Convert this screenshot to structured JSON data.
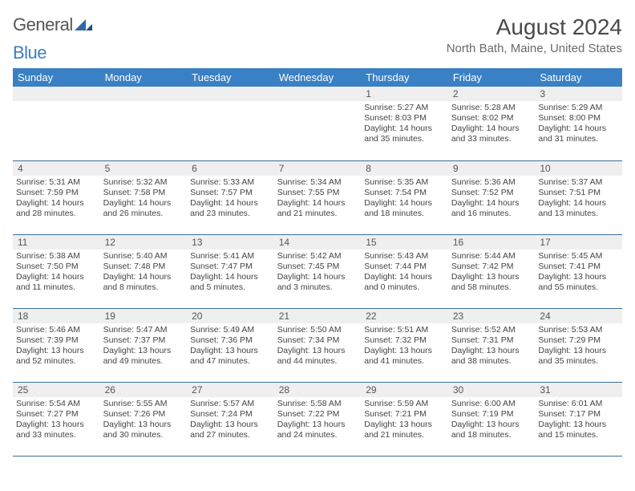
{
  "logo": {
    "word1": "General",
    "word2": "Blue",
    "word1_color": "#555555",
    "word2_color": "#3a80c4",
    "mark_color": "#2f6aa8"
  },
  "title": {
    "month_year": "August 2024",
    "location": "North Bath, Maine, United States",
    "title_color": "#4a4a4a",
    "location_color": "#6a6a6a",
    "title_fontsize": 28,
    "location_fontsize": 15
  },
  "theme": {
    "header_bg": "#3a80c4",
    "header_text": "#ffffff",
    "daynum_bg": "#efefef",
    "daynum_text": "#555555",
    "row_divider": "#3a6fa0",
    "body_text": "#444444",
    "page_bg": "#ffffff"
  },
  "weekdays": [
    "Sunday",
    "Monday",
    "Tuesday",
    "Wednesday",
    "Thursday",
    "Friday",
    "Saturday"
  ],
  "weeks": [
    [
      {
        "blank": true
      },
      {
        "blank": true
      },
      {
        "blank": true
      },
      {
        "blank": true
      },
      {
        "day": "1",
        "sunrise": "Sunrise: 5:27 AM",
        "sunset": "Sunset: 8:03 PM",
        "daylight": "Daylight: 14 hours and 35 minutes."
      },
      {
        "day": "2",
        "sunrise": "Sunrise: 5:28 AM",
        "sunset": "Sunset: 8:02 PM",
        "daylight": "Daylight: 14 hours and 33 minutes."
      },
      {
        "day": "3",
        "sunrise": "Sunrise: 5:29 AM",
        "sunset": "Sunset: 8:00 PM",
        "daylight": "Daylight: 14 hours and 31 minutes."
      }
    ],
    [
      {
        "day": "4",
        "sunrise": "Sunrise: 5:31 AM",
        "sunset": "Sunset: 7:59 PM",
        "daylight": "Daylight: 14 hours and 28 minutes."
      },
      {
        "day": "5",
        "sunrise": "Sunrise: 5:32 AM",
        "sunset": "Sunset: 7:58 PM",
        "daylight": "Daylight: 14 hours and 26 minutes."
      },
      {
        "day": "6",
        "sunrise": "Sunrise: 5:33 AM",
        "sunset": "Sunset: 7:57 PM",
        "daylight": "Daylight: 14 hours and 23 minutes."
      },
      {
        "day": "7",
        "sunrise": "Sunrise: 5:34 AM",
        "sunset": "Sunset: 7:55 PM",
        "daylight": "Daylight: 14 hours and 21 minutes."
      },
      {
        "day": "8",
        "sunrise": "Sunrise: 5:35 AM",
        "sunset": "Sunset: 7:54 PM",
        "daylight": "Daylight: 14 hours and 18 minutes."
      },
      {
        "day": "9",
        "sunrise": "Sunrise: 5:36 AM",
        "sunset": "Sunset: 7:52 PM",
        "daylight": "Daylight: 14 hours and 16 minutes."
      },
      {
        "day": "10",
        "sunrise": "Sunrise: 5:37 AM",
        "sunset": "Sunset: 7:51 PM",
        "daylight": "Daylight: 14 hours and 13 minutes."
      }
    ],
    [
      {
        "day": "11",
        "sunrise": "Sunrise: 5:38 AM",
        "sunset": "Sunset: 7:50 PM",
        "daylight": "Daylight: 14 hours and 11 minutes."
      },
      {
        "day": "12",
        "sunrise": "Sunrise: 5:40 AM",
        "sunset": "Sunset: 7:48 PM",
        "daylight": "Daylight: 14 hours and 8 minutes."
      },
      {
        "day": "13",
        "sunrise": "Sunrise: 5:41 AM",
        "sunset": "Sunset: 7:47 PM",
        "daylight": "Daylight: 14 hours and 5 minutes."
      },
      {
        "day": "14",
        "sunrise": "Sunrise: 5:42 AM",
        "sunset": "Sunset: 7:45 PM",
        "daylight": "Daylight: 14 hours and 3 minutes."
      },
      {
        "day": "15",
        "sunrise": "Sunrise: 5:43 AM",
        "sunset": "Sunset: 7:44 PM",
        "daylight": "Daylight: 14 hours and 0 minutes."
      },
      {
        "day": "16",
        "sunrise": "Sunrise: 5:44 AM",
        "sunset": "Sunset: 7:42 PM",
        "daylight": "Daylight: 13 hours and 58 minutes."
      },
      {
        "day": "17",
        "sunrise": "Sunrise: 5:45 AM",
        "sunset": "Sunset: 7:41 PM",
        "daylight": "Daylight: 13 hours and 55 minutes."
      }
    ],
    [
      {
        "day": "18",
        "sunrise": "Sunrise: 5:46 AM",
        "sunset": "Sunset: 7:39 PM",
        "daylight": "Daylight: 13 hours and 52 minutes."
      },
      {
        "day": "19",
        "sunrise": "Sunrise: 5:47 AM",
        "sunset": "Sunset: 7:37 PM",
        "daylight": "Daylight: 13 hours and 49 minutes."
      },
      {
        "day": "20",
        "sunrise": "Sunrise: 5:49 AM",
        "sunset": "Sunset: 7:36 PM",
        "daylight": "Daylight: 13 hours and 47 minutes."
      },
      {
        "day": "21",
        "sunrise": "Sunrise: 5:50 AM",
        "sunset": "Sunset: 7:34 PM",
        "daylight": "Daylight: 13 hours and 44 minutes."
      },
      {
        "day": "22",
        "sunrise": "Sunrise: 5:51 AM",
        "sunset": "Sunset: 7:32 PM",
        "daylight": "Daylight: 13 hours and 41 minutes."
      },
      {
        "day": "23",
        "sunrise": "Sunrise: 5:52 AM",
        "sunset": "Sunset: 7:31 PM",
        "daylight": "Daylight: 13 hours and 38 minutes."
      },
      {
        "day": "24",
        "sunrise": "Sunrise: 5:53 AM",
        "sunset": "Sunset: 7:29 PM",
        "daylight": "Daylight: 13 hours and 35 minutes."
      }
    ],
    [
      {
        "day": "25",
        "sunrise": "Sunrise: 5:54 AM",
        "sunset": "Sunset: 7:27 PM",
        "daylight": "Daylight: 13 hours and 33 minutes."
      },
      {
        "day": "26",
        "sunrise": "Sunrise: 5:55 AM",
        "sunset": "Sunset: 7:26 PM",
        "daylight": "Daylight: 13 hours and 30 minutes."
      },
      {
        "day": "27",
        "sunrise": "Sunrise: 5:57 AM",
        "sunset": "Sunset: 7:24 PM",
        "daylight": "Daylight: 13 hours and 27 minutes."
      },
      {
        "day": "28",
        "sunrise": "Sunrise: 5:58 AM",
        "sunset": "Sunset: 7:22 PM",
        "daylight": "Daylight: 13 hours and 24 minutes."
      },
      {
        "day": "29",
        "sunrise": "Sunrise: 5:59 AM",
        "sunset": "Sunset: 7:21 PM",
        "daylight": "Daylight: 13 hours and 21 minutes."
      },
      {
        "day": "30",
        "sunrise": "Sunrise: 6:00 AM",
        "sunset": "Sunset: 7:19 PM",
        "daylight": "Daylight: 13 hours and 18 minutes."
      },
      {
        "day": "31",
        "sunrise": "Sunrise: 6:01 AM",
        "sunset": "Sunset: 7:17 PM",
        "daylight": "Daylight: 13 hours and 15 minutes."
      }
    ]
  ]
}
